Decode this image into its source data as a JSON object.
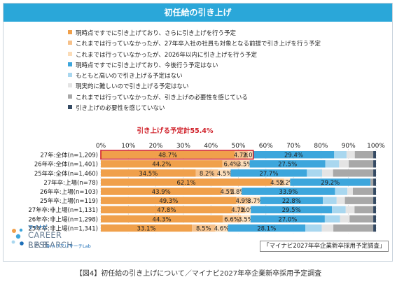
{
  "title": "初任給の引き上げ",
  "caption": "【図4】初任給の引き上げについて／マイナビ2027年卒企業新卒採用予定調査",
  "source_note": "「マイナビ2027年卒企業新卒採用予定調査」",
  "logo": {
    "brand": "マイナビ",
    "line1": "CAREER RESEARCH",
    "line2": "LAB",
    "sub": "キャリアリサーチLab"
  },
  "colors": {
    "title_bg": "#2aa7d9",
    "highlight_border": "#d0212a",
    "highlight_text": "#d0212a"
  },
  "chart_data": {
    "type": "bar",
    "orientation": "horizontal",
    "stacked": true,
    "annotation": "引き上げる予定計55.4%",
    "xlim": [
      0,
      100
    ],
    "xticks": [
      "0%",
      "10%",
      "20%",
      "30%",
      "40%",
      "50%",
      "60%",
      "70%",
      "80%",
      "90%",
      "100%"
    ],
    "grid": true,
    "legend_position": "top-left",
    "categories": [
      "27年:全体(n=1,209)",
      "26年卒:全体(n=1,401)",
      "25年卒:全体(n=1,460)",
      "27年卒:上場(n=78)",
      "26年卒:上場(n=103)",
      "25年卒:上場(n=119)",
      "27年卒:非上場(n=1,131)",
      "26年卒:非上場(n=1,298)",
      "25年卒:非上場(n=1,341)"
    ],
    "series": [
      {
        "name": "現時点ですでに引き上げており、さらに引き上げを行う予定",
        "color": "#f0a04b",
        "values": [
          48.7,
          44.2,
          34.5,
          62.1,
          43.9,
          49.3,
          47.8,
          44.3,
          33.1
        ],
        "labels": [
          "48.7%",
          "44.2%",
          "34.5%",
          "62.1%",
          "43.9%",
          "49.3%",
          "47.8%",
          "44.3%",
          "33.1%"
        ]
      },
      {
        "name": "これまでは行っていなかったが、27年卒入社の社員も対象となる前提で引き上げを行う予定",
        "color": "#f6c18a",
        "values": [
          4.7,
          6.4,
          8.2,
          4.5,
          4.5,
          4.9,
          4.7,
          6.6,
          8.5
        ],
        "labels": [
          "4.7%",
          "6.4%",
          "8.2%",
          "4.5%",
          "4.5%",
          "4.9%",
          "4.7%",
          "6.6%",
          "8.5%"
        ]
      },
      {
        "name": "これまでは行っていなかったが、2026年以内に引き上げを行う予定",
        "color": "#fbdcb8",
        "values": [
          2.0,
          3.5,
          4.5,
          2.2,
          2.8,
          3.7,
          2.0,
          3.5,
          4.6
        ],
        "labels": [
          "2.0%",
          "3.5%",
          "4.5%",
          "2.2%",
          "2.8%",
          "3.7%",
          "2.0%",
          "3.5%",
          "4.6%"
        ]
      },
      {
        "name": "現時点ですでに引き上げており、今後行う予定はない",
        "color": "#3da6dc",
        "values": [
          29.4,
          27.5,
          27.7,
          29.2,
          33.9,
          22.8,
          29.5,
          27.0,
          28.1
        ],
        "labels": [
          "29.4%",
          "27.5%",
          "27.7%",
          "29.2%",
          "33.9%",
          "22.8%",
          "29.5%",
          "27.0%",
          "28.1%"
        ]
      },
      {
        "name": "もともと高いので引き上げる予定はない",
        "color": "#a9d7ef",
        "values": [
          4.5,
          5.0,
          5.5,
          0.0,
          4.5,
          5.0,
          5.0,
          5.5,
          6.0
        ],
        "labels": [
          "",
          "",
          "",
          "",
          "",
          "",
          "",
          "",
          ""
        ]
      },
      {
        "name": "現実的に難しいので引き上げる予定はない",
        "color": "#e4e4e4",
        "values": [
          3.0,
          3.5,
          4.0,
          0.0,
          2.0,
          3.0,
          3.2,
          3.5,
          4.2
        ],
        "labels": [
          "",
          "",
          "",
          "",
          "",
          "",
          "",
          "",
          ""
        ]
      },
      {
        "name": "これまでは行っていなかったが、引き上げの必要性を感じている",
        "color": "#a8a8a8",
        "values": [
          6.7,
          8.9,
          14.6,
          1.0,
          7.4,
          10.3,
          6.8,
          8.6,
          14.5
        ],
        "labels": [
          "",
          "",
          "",
          "",
          "",
          "",
          "",
          "",
          ""
        ]
      },
      {
        "name": "引き上げの必要性を感じていない",
        "color": "#354a63",
        "values": [
          1.0,
          1.0,
          1.0,
          1.0,
          1.0,
          1.0,
          1.0,
          1.0,
          1.0
        ],
        "labels": [
          "",
          "",
          "",
          "",
          "",
          "",
          "",
          "",
          ""
        ]
      }
    ]
  }
}
